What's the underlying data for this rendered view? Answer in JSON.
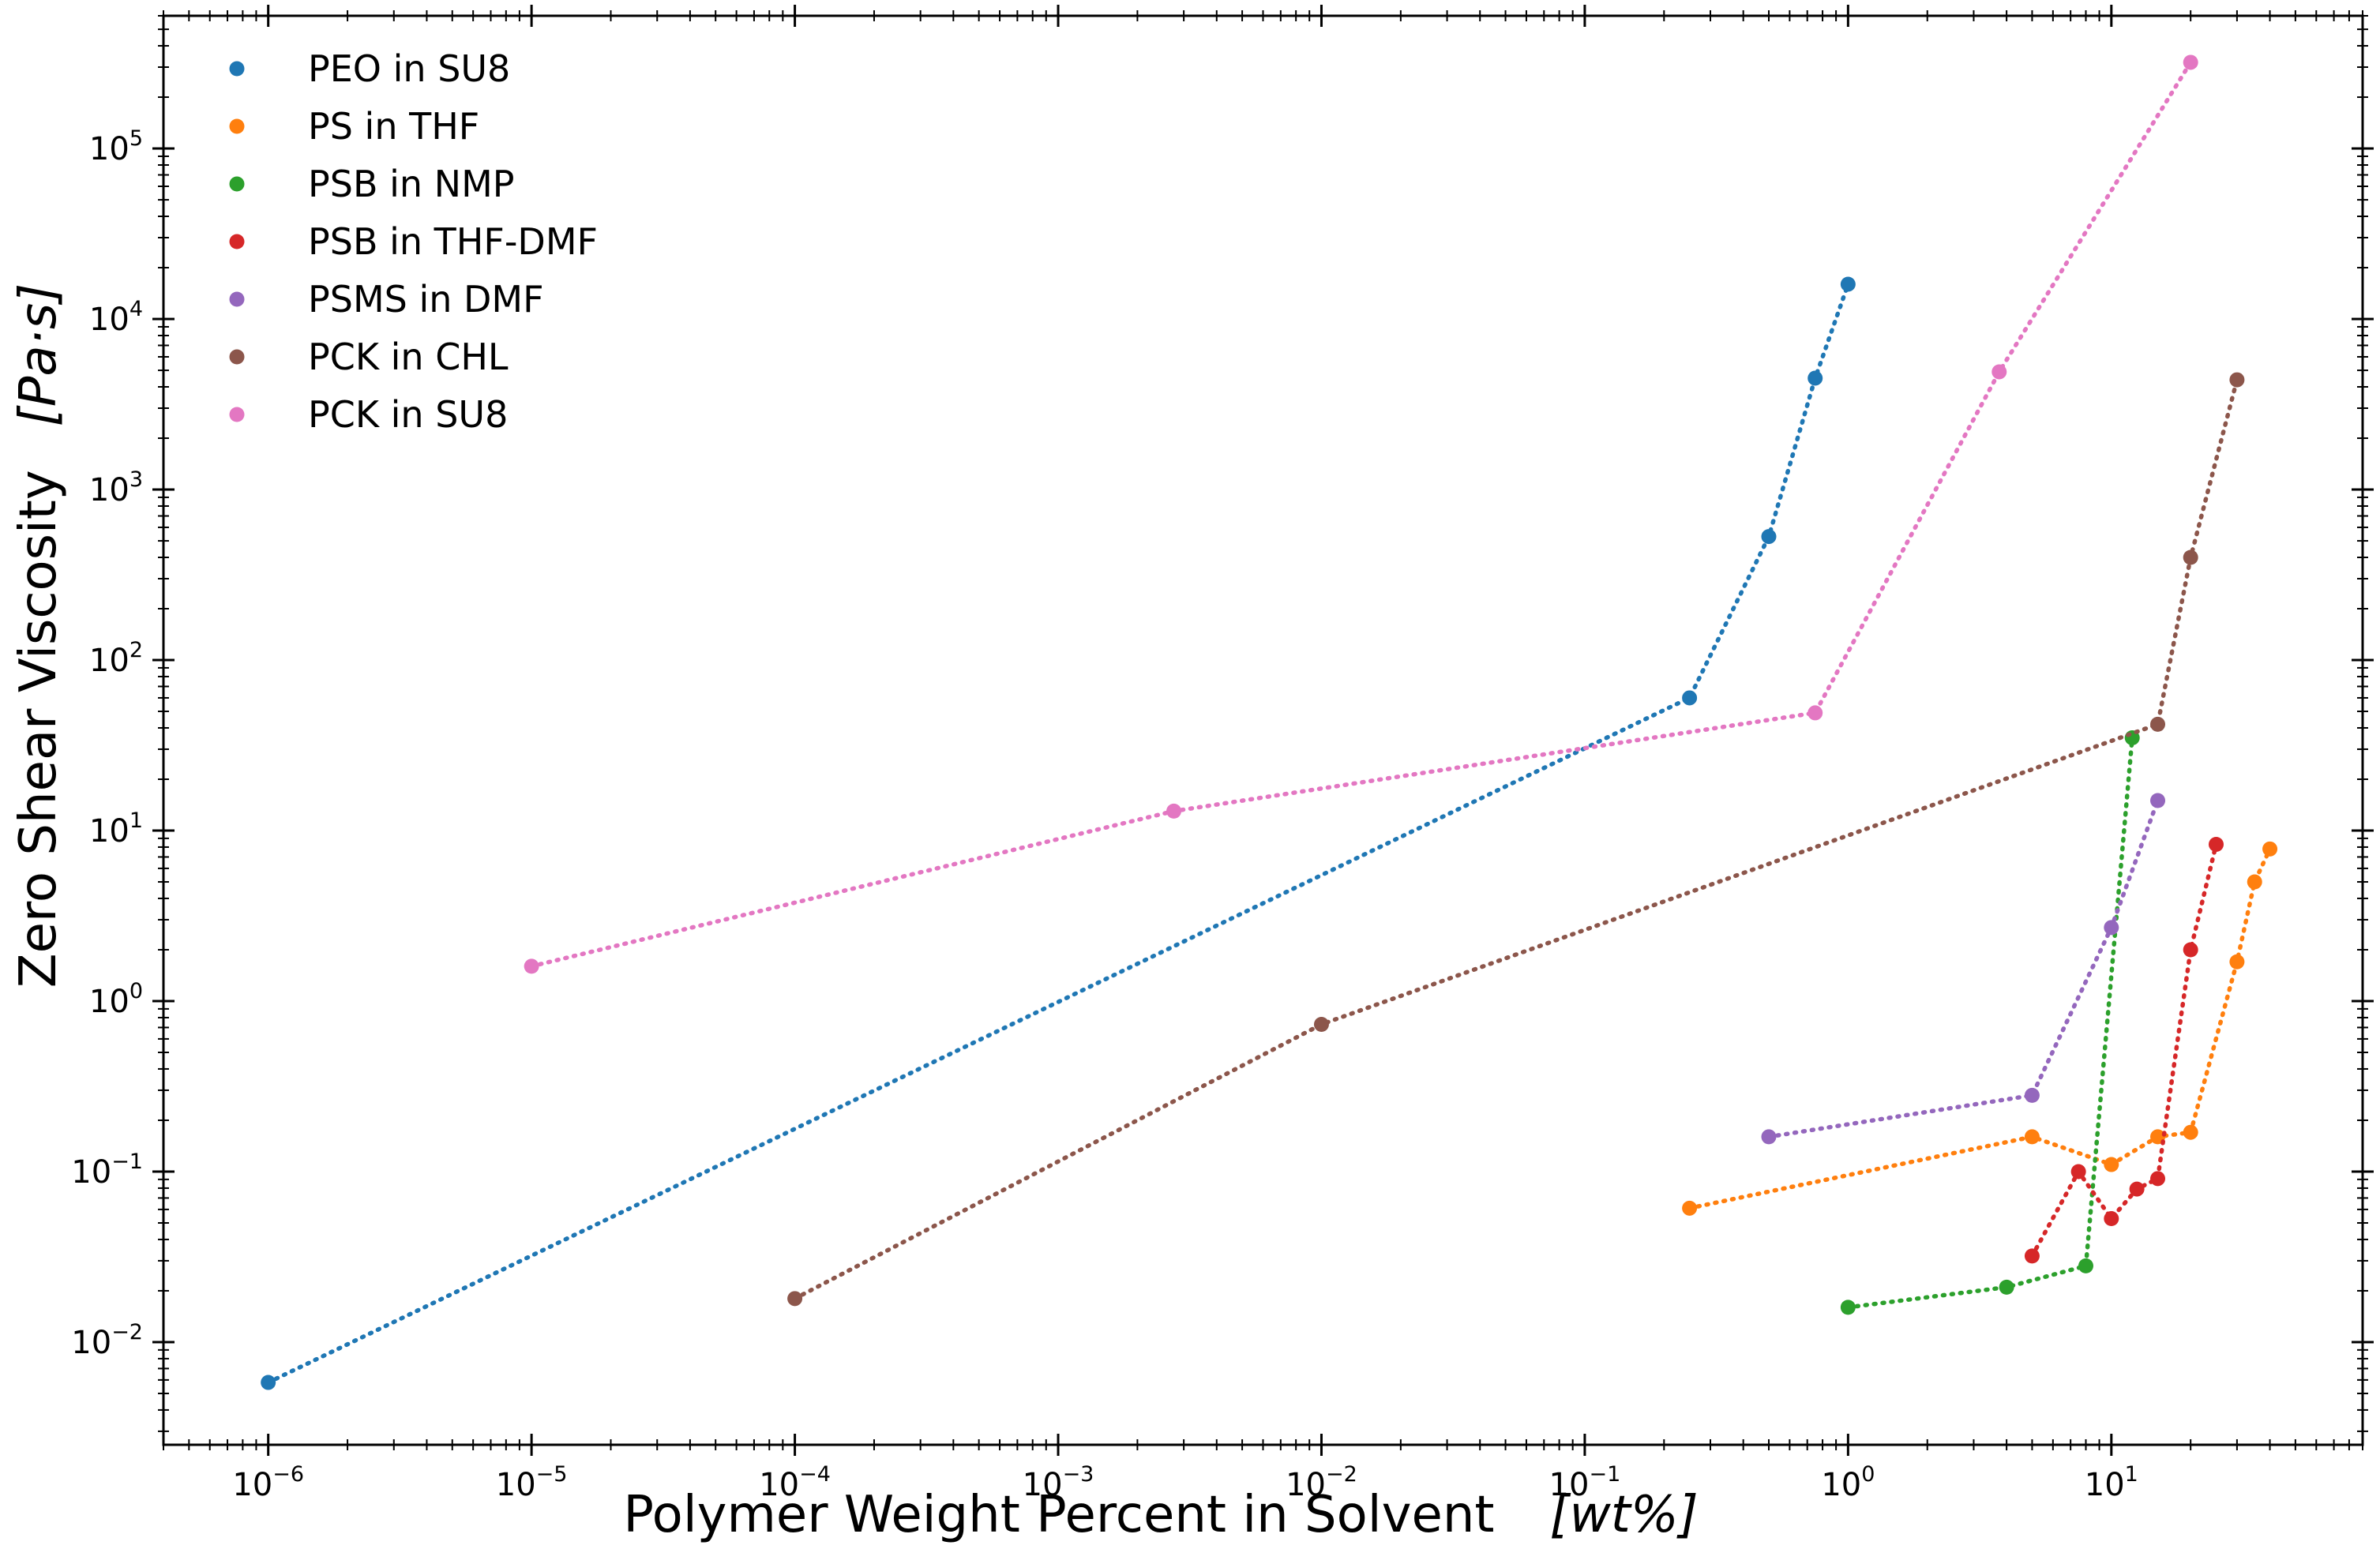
{
  "chart_data": {
    "type": "line",
    "line_style": "dotted",
    "marker": "circle",
    "xlabel": "Polymer Weight Percent in Solvent",
    "xlabel_unit": "[wt%]",
    "ylabel": "Zero Shear Viscosity",
    "ylabel_unit": "[Pa·s]",
    "xscale": "log",
    "yscale": "log",
    "xlim": [
      4e-07,
      90
    ],
    "ylim": [
      0.0025,
      600000
    ],
    "grid": false,
    "legend_position": "top-left",
    "x_ticks": [
      {
        "base": "10",
        "exp": "−6",
        "value": 1e-06
      },
      {
        "base": "10",
        "exp": "−5",
        "value": 1e-05
      },
      {
        "base": "10",
        "exp": "−4",
        "value": 0.0001
      },
      {
        "base": "10",
        "exp": "−3",
        "value": 0.001
      },
      {
        "base": "10",
        "exp": "−2",
        "value": 0.01
      },
      {
        "base": "10",
        "exp": "−1",
        "value": 0.1
      },
      {
        "base": "10",
        "exp": "0",
        "value": 1
      },
      {
        "base": "10",
        "exp": "1",
        "value": 10
      }
    ],
    "y_ticks": [
      {
        "base": "10",
        "exp": "−2",
        "value": 0.01
      },
      {
        "base": "10",
        "exp": "−1",
        "value": 0.1
      },
      {
        "base": "10",
        "exp": "0",
        "value": 1
      },
      {
        "base": "10",
        "exp": "1",
        "value": 10
      },
      {
        "base": "10",
        "exp": "2",
        "value": 100
      },
      {
        "base": "10",
        "exp": "3",
        "value": 1000
      },
      {
        "base": "10",
        "exp": "4",
        "value": 10000
      },
      {
        "base": "10",
        "exp": "5",
        "value": 100000
      }
    ],
    "series": [
      {
        "name": "PEO in SU8",
        "color": "#1f77b4",
        "x": [
          1e-06,
          0.25,
          0.5,
          0.75,
          1.0
        ],
        "y": [
          0.0058,
          60,
          530,
          4500,
          16000
        ]
      },
      {
        "name": "PS in THF",
        "color": "#ff7f0e",
        "x": [
          0.25,
          5,
          10,
          15,
          20,
          30,
          35,
          40
        ],
        "y": [
          0.061,
          0.16,
          0.11,
          0.16,
          0.17,
          1.7,
          5.0,
          7.8
        ]
      },
      {
        "name": "PSB in NMP",
        "color": "#2ca02c",
        "x": [
          1,
          4,
          8,
          12
        ],
        "y": [
          0.016,
          0.021,
          0.028,
          35
        ]
      },
      {
        "name": "PSB in THF-DMF",
        "color": "#d62728",
        "x": [
          5,
          7.5,
          10,
          12.5,
          15,
          20,
          25
        ],
        "y": [
          0.032,
          0.1,
          0.053,
          0.079,
          0.091,
          2.0,
          8.3
        ]
      },
      {
        "name": "PSMS in DMF",
        "color": "#9467bd",
        "x": [
          0.5,
          5,
          10,
          15
        ],
        "y": [
          0.16,
          0.28,
          2.7,
          15
        ]
      },
      {
        "name": "PCK in CHL",
        "color": "#8c564b",
        "x": [
          0.0001,
          0.01,
          15,
          20,
          30
        ],
        "y": [
          0.018,
          0.73,
          42,
          400,
          4400
        ]
      },
      {
        "name": "PCK in SU8",
        "color": "#e377c2",
        "x": [
          1e-05,
          0.00275,
          0.75,
          3.75,
          20
        ],
        "y": [
          1.6,
          13,
          49,
          4900,
          320000
        ]
      }
    ]
  }
}
